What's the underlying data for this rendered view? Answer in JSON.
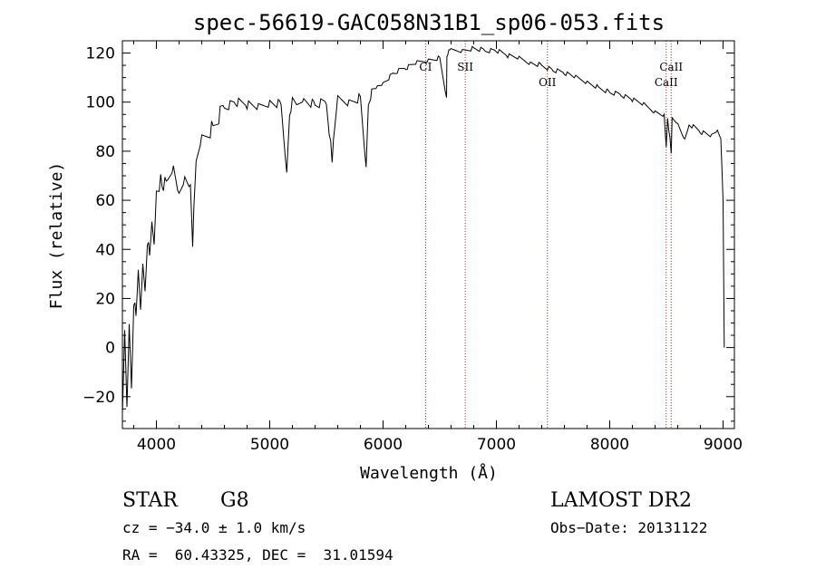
{
  "chart_data": {
    "type": "line",
    "title": "spec-56619-GAC058N31B1_sp06-053.fits",
    "xlabel": "Wavelength (Å)",
    "ylabel": "Flux (relative)",
    "xlim": [
      3700,
      9100
    ],
    "ylim": [
      -33,
      125
    ],
    "xticks": [
      4000,
      5000,
      6000,
      7000,
      8000,
      9000
    ],
    "yticks": [
      -20,
      0,
      20,
      40,
      60,
      80,
      100,
      120
    ],
    "grid": false,
    "spectrum": {
      "x": [
        3700,
        3720,
        3740,
        3760,
        3780,
        3800,
        3820,
        3840,
        3860,
        3880,
        3900,
        3920,
        3940,
        3960,
        3980,
        4000,
        4050,
        4100,
        4150,
        4200,
        4250,
        4300,
        4320,
        4350,
        4400,
        4500,
        4600,
        4700,
        4800,
        4900,
        5000,
        5100,
        5150,
        5175,
        5200,
        5250,
        5300,
        5400,
        5500,
        5550,
        5600,
        5700,
        5800,
        5850,
        5870,
        5890,
        5900,
        5950,
        6000,
        6100,
        6200,
        6300,
        6400,
        6500,
        6560,
        6563,
        6570,
        6600,
        6700,
        6800,
        6900,
        7000,
        7100,
        7200,
        7300,
        7400,
        7500,
        7600,
        7700,
        7800,
        7900,
        8000,
        8100,
        8200,
        8300,
        8400,
        8480,
        8498,
        8510,
        8542,
        8550,
        8600,
        8662,
        8700,
        8800,
        8900,
        8950,
        8980,
        9000,
        9010
      ],
      "y": [
        -30,
        5,
        -25,
        10,
        -15,
        20,
        10,
        30,
        15,
        35,
        25,
        45,
        35,
        50,
        42,
        65,
        68,
        65,
        72,
        62,
        70,
        68,
        44,
        73,
        85,
        90,
        98,
        100,
        99,
        98,
        100,
        99,
        72,
        96,
        100,
        98,
        101,
        99,
        100,
        77,
        101,
        100,
        102,
        74,
        100,
        103,
        104,
        106,
        108,
        112,
        114,
        116,
        117,
        118,
        102,
        119,
        120,
        121,
        121,
        122,
        121,
        121,
        119,
        118,
        116,
        115,
        113,
        112,
        110,
        108,
        106,
        104,
        103,
        101,
        99,
        96,
        95,
        82,
        94,
        80,
        93,
        91,
        85,
        91,
        88,
        86,
        88,
        85,
        60,
        0
      ]
    },
    "emission_lines": [
      {
        "name": "CaII",
        "x": 8542,
        "position": "top"
      },
      {
        "name": "CaII",
        "x": 8498,
        "position": "lower"
      },
      {
        "name": "OII",
        "x": 7450,
        "position": "lower"
      },
      {
        "name": "SII",
        "x": 6725,
        "position": "top"
      },
      {
        "name": "CI",
        "x": 6375,
        "position": "top"
      }
    ]
  },
  "info": {
    "object_class": "STAR",
    "subclass": "G8",
    "survey": "LAMOST DR2",
    "cz": "cz = −34.0 ± 1.0 km/s",
    "obs_date": "Obs−Date: 20131122",
    "coords": "RA =  60.43325, DEC =  31.01594"
  }
}
